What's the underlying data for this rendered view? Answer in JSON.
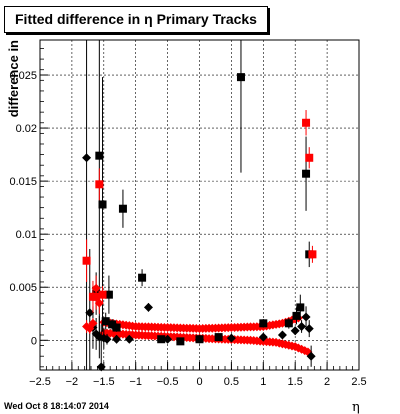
{
  "title": "Fitted difference in  η  Primary Tracks",
  "footer": "Wed Oct  8 18:14:07 2014",
  "chart_data": {
    "type": "scatter",
    "title": "Fitted difference in  η  Primary Tracks",
    "xlabel": "η",
    "ylabel": "difference in",
    "xlim": [
      -2.5,
      2.5
    ],
    "ylim": [
      -0.0028,
      0.0283
    ],
    "grid": true,
    "x_ticks": [
      "−2.5",
      "−2",
      "−1.5",
      "−1",
      "−0.5",
      "0",
      "0.5",
      "1",
      "1.5",
      "2",
      "2.5"
    ],
    "y_ticks": [
      "0",
      "0.005",
      "0.01",
      "0.015",
      "0.02",
      "0.025"
    ],
    "series": [
      {
        "color": "#000000",
        "marker": "square",
        "points": [
          {
            "x": -1.62,
            "y": 0.0044,
            "err": 0.002
          },
          {
            "x": -1.57,
            "y": 0.0174,
            "err": 0.017
          },
          {
            "x": -1.52,
            "y": 0.0128,
            "err": 0.012
          },
          {
            "x": -1.47,
            "y": 0.0018,
            "err": 0.0008
          },
          {
            "x": -1.42,
            "y": 0.0043,
            "err": 0.0018
          },
          {
            "x": -1.37,
            "y": 0.0015,
            "err": 0.0005
          },
          {
            "x": -1.3,
            "y": 0.0012,
            "err": 0.0004
          },
          {
            "x": -1.2,
            "y": 0.0124,
            "err": 0.0018
          },
          {
            "x": -0.9,
            "y": 0.0059,
            "err": 0.0008
          },
          {
            "x": -0.6,
            "y": 0.0001,
            "err": 0.0002
          },
          {
            "x": -0.3,
            "y": -0.0001,
            "err": 0.0002
          },
          {
            "x": 0.0,
            "y": 0.0001,
            "err": 0.0002
          },
          {
            "x": 0.3,
            "y": 0.0003,
            "err": 0.0002
          },
          {
            "x": 0.65,
            "y": 0.0248,
            "err": 0.009
          },
          {
            "x": 1.0,
            "y": 0.0016,
            "err": 0.0004
          },
          {
            "x": 1.4,
            "y": 0.0016,
            "err": 0.0005
          },
          {
            "x": 1.52,
            "y": 0.0023,
            "err": 0.0008
          },
          {
            "x": 1.58,
            "y": 0.0031,
            "err": 0.0012
          },
          {
            "x": 1.67,
            "y": 0.0157,
            "err": 0.0035
          },
          {
            "x": 1.72,
            "y": 0.0081,
            "err": 0.0012
          }
        ]
      },
      {
        "color": "#000000",
        "marker": "diamond",
        "points": [
          {
            "x": -1.77,
            "y": 0.0172,
            "err": 0.02
          },
          {
            "x": -1.72,
            "y": 0.0026,
            "err": 0.006
          },
          {
            "x": -1.67,
            "y": 0.0012,
            "err": 0.002
          },
          {
            "x": -1.62,
            "y": 0.0006,
            "err": 0.0015
          },
          {
            "x": -1.57,
            "y": 0.0003,
            "err": 0.002
          },
          {
            "x": -1.54,
            "y": -0.0025,
            "err": 0.004
          },
          {
            "x": -1.5,
            "y": 0.0002,
            "err": 0.001
          },
          {
            "x": -1.45,
            "y": 0.0001,
            "err": 0.0005
          },
          {
            "x": -1.3,
            "y": 0.0001,
            "err": 0.0004
          },
          {
            "x": -1.1,
            "y": 0.0001,
            "err": 0.0003
          },
          {
            "x": -0.8,
            "y": 0.0031,
            "err": 0.0004
          },
          {
            "x": -0.5,
            "y": 0.0001,
            "err": 0.0002
          },
          {
            "x": 0.0,
            "y": 0.0001,
            "err": 0.0002
          },
          {
            "x": 0.5,
            "y": 0.0002,
            "err": 0.0002
          },
          {
            "x": 1.0,
            "y": 0.0003,
            "err": 0.0002
          },
          {
            "x": 1.3,
            "y": 0.0005,
            "err": 0.0003
          },
          {
            "x": 1.5,
            "y": 0.0009,
            "err": 0.0004
          },
          {
            "x": 1.6,
            "y": 0.0013,
            "err": 0.0006
          },
          {
            "x": 1.67,
            "y": 0.0022,
            "err": 0.001
          },
          {
            "x": 1.72,
            "y": 0.0011,
            "err": 0.0008
          },
          {
            "x": 1.75,
            "y": -0.0015,
            "err": 0.001
          }
        ]
      },
      {
        "color": "#ff0000",
        "marker": "square",
        "points": [
          {
            "x": -1.77,
            "y": 0.0075,
            "err": 0.002
          },
          {
            "x": -1.67,
            "y": 0.0041,
            "err": 0.0015
          },
          {
            "x": -1.62,
            "y": 0.0041,
            "err": 0.0012
          },
          {
            "x": -1.57,
            "y": 0.0147,
            "err": 0.0015
          },
          {
            "x": -1.52,
            "y": 0.0043,
            "err": 0.0008
          },
          {
            "x": 1.67,
            "y": 0.0205,
            "err": 0.0012
          },
          {
            "x": 1.72,
            "y": 0.0172,
            "err": 0.001
          },
          {
            "x": 1.77,
            "y": 0.0081,
            "err": 0.0008
          }
        ]
      },
      {
        "color": "#ff0000",
        "marker": "diamond",
        "points": [
          {
            "x": -1.77,
            "y": 0.0013,
            "err": 0.0006
          },
          {
            "x": -1.72,
            "y": 0.0011,
            "err": 0.0005
          },
          {
            "x": -1.67,
            "y": 0.0016,
            "err": 0.0005
          },
          {
            "x": -1.62,
            "y": 0.0049,
            "err": 0.0012
          },
          {
            "x": -1.57,
            "y": 0.0035,
            "err": 0.001
          }
        ]
      }
    ],
    "band_top": {
      "color": "#ff0000",
      "marker": "diamond",
      "x_from": -1.5,
      "x_to": 1.55,
      "step": 0.05,
      "y_at": [
        [
          -1.5,
          0.0017
        ],
        [
          -1.0,
          0.0013
        ],
        [
          0.0,
          0.0011
        ],
        [
          1.0,
          0.0013
        ],
        [
          1.3,
          0.0016
        ],
        [
          1.55,
          0.0021
        ]
      ]
    },
    "band_bottom": {
      "color": "#ff0000",
      "marker": "diamond",
      "x_from": -1.5,
      "x_to": 1.7,
      "step": 0.05,
      "y_at": [
        [
          -1.5,
          0.0007
        ],
        [
          -1.0,
          0.0005
        ],
        [
          0.0,
          0.0002
        ],
        [
          0.8,
          0.0
        ],
        [
          1.2,
          -0.0002
        ],
        [
          1.5,
          -0.0006
        ],
        [
          1.7,
          -0.0011
        ]
      ]
    }
  }
}
